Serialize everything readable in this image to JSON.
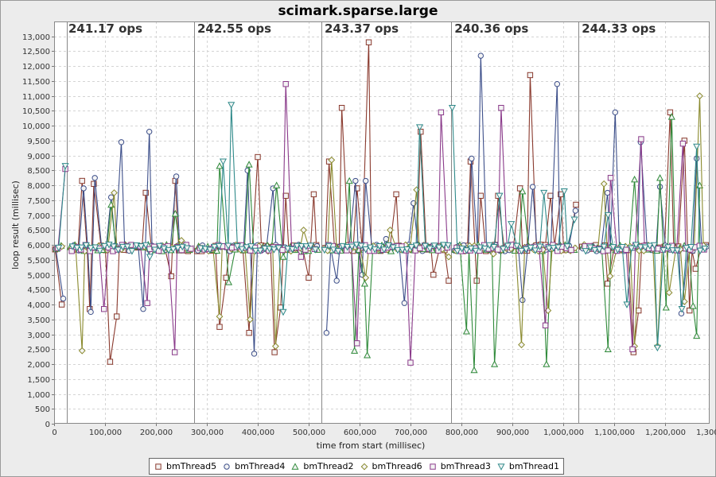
{
  "chart_data": {
    "type": "line",
    "title": "scimark.sparse.large",
    "xlabel": "time from start (millisec)",
    "ylabel": "loop result (millisec)",
    "xlim": [
      0,
      1310000
    ],
    "ylim": [
      0,
      13500
    ],
    "x_ticks": [
      "0",
      "100,000",
      "200,000",
      "300,000",
      "400,000",
      "500,000",
      "600,000",
      "700,000",
      "800,000",
      "900,000",
      "1,000,000",
      "1,100,000",
      "1,200,000",
      "1,300,000"
    ],
    "y_ticks": [
      "0",
      "500",
      "1,000",
      "1,500",
      "2,000",
      "2,500",
      "3,000",
      "3,500",
      "4,000",
      "4,500",
      "5,000",
      "5,500",
      "6,000",
      "6,500",
      "7,000",
      "7,500",
      "8,000",
      "8,500",
      "9,000",
      "9,500",
      "10,000",
      "10,500",
      "11,000",
      "11,500",
      "12,000",
      "12,500",
      "13,000"
    ],
    "grid": true,
    "legend_position": "bottom",
    "iterations": [
      {
        "start": 0,
        "label": "241.17 ops"
      },
      {
        "start": 25000,
        "label": ""
      },
      {
        "start": 275000,
        "label": "242.55 ops"
      },
      {
        "start": 525000,
        "label": "243.37 ops"
      },
      {
        "start": 780000,
        "label": "240.36 ops"
      },
      {
        "start": 1030000,
        "label": "244.33 ops"
      }
    ],
    "series": [
      {
        "name": "bmThread5",
        "color": "#8a3a2e",
        "marker": "square",
        "spikes": [
          [
            15000,
            4000
          ],
          [
            55000,
            8150
          ],
          [
            70000,
            3850
          ],
          [
            78000,
            8050
          ],
          [
            110000,
            2080
          ],
          [
            123000,
            3600
          ],
          [
            180000,
            7750
          ],
          [
            230000,
            4950
          ],
          [
            238000,
            8150
          ],
          [
            325000,
            3250
          ],
          [
            338000,
            4900
          ],
          [
            383000,
            3050
          ],
          [
            400000,
            8950
          ],
          [
            433000,
            2400
          ],
          [
            445000,
            3900
          ],
          [
            455000,
            7650
          ],
          [
            500000,
            4900
          ],
          [
            510000,
            7700
          ],
          [
            540000,
            8800
          ],
          [
            565000,
            10600
          ],
          [
            595000,
            7900
          ],
          [
            618000,
            12800
          ],
          [
            648000,
            5900
          ],
          [
            672000,
            7700
          ],
          [
            720000,
            9800
          ],
          [
            745000,
            5000
          ],
          [
            775000,
            4800
          ],
          [
            818000,
            8800
          ],
          [
            830000,
            4800
          ],
          [
            838000,
            7650
          ],
          [
            872000,
            7650
          ],
          [
            915000,
            7900
          ],
          [
            935000,
            11700
          ],
          [
            975000,
            7650
          ],
          [
            995000,
            7700
          ],
          [
            1025000,
            7350
          ],
          [
            1087000,
            4700
          ],
          [
            1138000,
            2400
          ],
          [
            1148000,
            3800
          ],
          [
            1210000,
            10450
          ],
          [
            1238000,
            9500
          ],
          [
            1248000,
            3800
          ],
          [
            1260000,
            5200
          ]
        ]
      },
      {
        "name": "bmThread4",
        "color": "#3d4f8a",
        "marker": "circle",
        "spikes": [
          [
            18000,
            4200
          ],
          [
            58000,
            7900
          ],
          [
            72000,
            3750
          ],
          [
            80000,
            8250
          ],
          [
            112000,
            7600
          ],
          [
            132000,
            9450
          ],
          [
            175000,
            3850
          ],
          [
            187000,
            9800
          ],
          [
            240000,
            8300
          ],
          [
            380000,
            8500
          ],
          [
            393000,
            2350
          ],
          [
            430000,
            7900
          ],
          [
            535000,
            3050
          ],
          [
            555000,
            4800
          ],
          [
            592000,
            8150
          ],
          [
            605000,
            5000
          ],
          [
            612000,
            8150
          ],
          [
            652000,
            6200
          ],
          [
            688000,
            4050
          ],
          [
            706000,
            7400
          ],
          [
            820000,
            8900
          ],
          [
            838000,
            12350
          ],
          [
            920000,
            4150
          ],
          [
            940000,
            7950
          ],
          [
            988000,
            11400
          ],
          [
            1024000,
            7150
          ],
          [
            1087000,
            7750
          ],
          [
            1102000,
            10450
          ],
          [
            1152000,
            9450
          ],
          [
            1190000,
            7950
          ],
          [
            1232000,
            3700
          ],
          [
            1262000,
            8900
          ]
        ]
      },
      {
        "name": "bmThread2",
        "color": "#2f8a3a",
        "marker": "triangle",
        "spikes": [
          [
            112000,
            7350
          ],
          [
            238000,
            7050
          ],
          [
            325000,
            8650
          ],
          [
            343000,
            4750
          ],
          [
            383000,
            8700
          ],
          [
            437000,
            8000
          ],
          [
            450000,
            5600
          ],
          [
            580000,
            8150
          ],
          [
            590000,
            2450
          ],
          [
            610000,
            4700
          ],
          [
            615000,
            2300
          ],
          [
            810000,
            3100
          ],
          [
            825000,
            1800
          ],
          [
            865000,
            2000
          ],
          [
            920000,
            7800
          ],
          [
            967000,
            2000
          ],
          [
            1088000,
            2500
          ],
          [
            1140000,
            8200
          ],
          [
            1190000,
            8250
          ],
          [
            1202000,
            3900
          ],
          [
            1213000,
            10300
          ],
          [
            1255000,
            3950
          ],
          [
            1262000,
            2950
          ],
          [
            1268000,
            8000
          ]
        ]
      },
      {
        "name": "bmThread6",
        "color": "#8a8a2e",
        "marker": "diamond",
        "spikes": [
          [
            55000,
            2450
          ],
          [
            118000,
            7750
          ],
          [
            250000,
            6150
          ],
          [
            325000,
            3600
          ],
          [
            385000,
            3500
          ],
          [
            435000,
            2600
          ],
          [
            445000,
            5850
          ],
          [
            490000,
            6500
          ],
          [
            545000,
            8850
          ],
          [
            612000,
            4900
          ],
          [
            660000,
            6500
          ],
          [
            712000,
            7850
          ],
          [
            775000,
            5600
          ],
          [
            863000,
            5700
          ],
          [
            918000,
            2650
          ],
          [
            970000,
            3800
          ],
          [
            1080000,
            8050
          ],
          [
            1092000,
            4950
          ],
          [
            1140000,
            2600
          ],
          [
            1185000,
            2600
          ],
          [
            1208000,
            4400
          ],
          [
            1238000,
            4100
          ],
          [
            1268000,
            11000
          ]
        ]
      },
      {
        "name": "bmThread3",
        "color": "#8a3a8a",
        "marker": "square",
        "spikes": [
          [
            22000,
            8550
          ],
          [
            98000,
            3850
          ],
          [
            183000,
            4050
          ],
          [
            237000,
            2400
          ],
          [
            455000,
            11400
          ],
          [
            485000,
            5600
          ],
          [
            595000,
            2700
          ],
          [
            700000,
            2050
          ],
          [
            760000,
            10450
          ],
          [
            878000,
            10600
          ],
          [
            965000,
            3300
          ],
          [
            1093000,
            8250
          ],
          [
            1136000,
            2500
          ],
          [
            1153000,
            9550
          ],
          [
            1235000,
            9400
          ]
        ]
      },
      {
        "name": "bmThread1",
        "color": "#2f8a8a",
        "marker": "triangle-down",
        "spikes": [
          [
            22000,
            8650
          ],
          [
            188000,
            5600
          ],
          [
            348000,
            10700
          ],
          [
            332000,
            8800
          ],
          [
            448000,
            8250
          ],
          [
            450000,
            3750
          ],
          [
            718000,
            9950
          ],
          [
            782000,
            10600
          ],
          [
            875000,
            7650
          ],
          [
            898000,
            6700
          ],
          [
            962000,
            7750
          ],
          [
            1002000,
            7800
          ],
          [
            1022000,
            6850
          ],
          [
            1088000,
            7000
          ],
          [
            1125000,
            4000
          ],
          [
            1185000,
            2550
          ],
          [
            1233000,
            3850
          ],
          [
            1262000,
            9300
          ]
        ]
      }
    ]
  }
}
